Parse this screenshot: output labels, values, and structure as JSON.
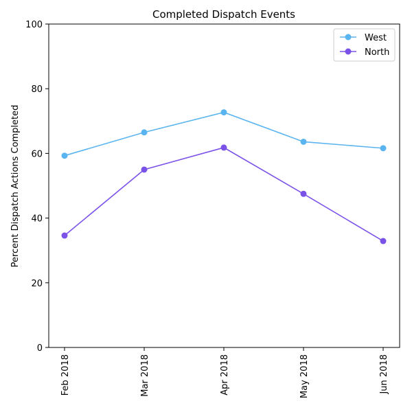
{
  "chart_data": {
    "type": "line",
    "title": "Completed Dispatch Events",
    "xlabel": "",
    "ylabel": "Percent Dispatch Actions Completed",
    "categories": [
      "Feb 2018",
      "Mar 2018",
      "Apr 2018",
      "May 2018",
      "Jun 2018"
    ],
    "ylim": [
      0,
      100
    ],
    "yticks": [
      "0",
      "20",
      "40",
      "60",
      "80",
      "100"
    ],
    "grid": false,
    "legend_position": "top-right",
    "series": [
      {
        "name": "West",
        "color": "#5ab4f0",
        "values": [
          59.3,
          66.5,
          72.7,
          63.6,
          61.6
        ]
      },
      {
        "name": "North",
        "color": "#7b52e8",
        "values": [
          34.6,
          55.0,
          61.8,
          47.5,
          32.9
        ]
      }
    ]
  }
}
